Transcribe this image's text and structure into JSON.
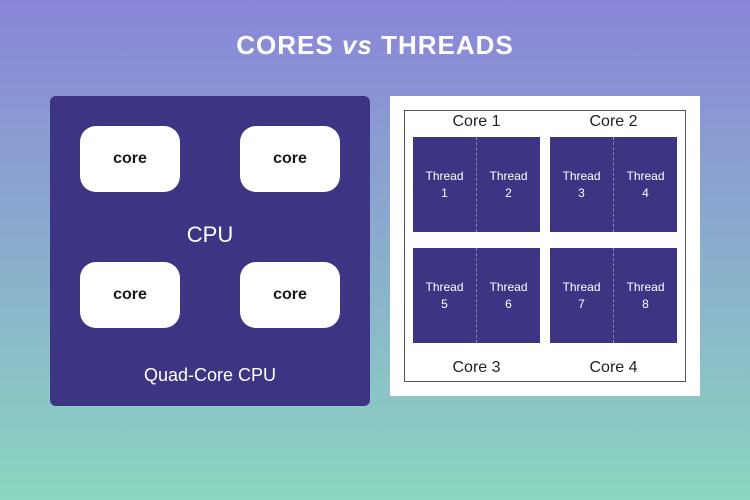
{
  "title": {
    "left": "CORES",
    "vs": "vs",
    "right": "THREADS",
    "fontsize": 26
  },
  "background": {
    "top": "#8a85d9",
    "bottom": "#8bd6c0"
  },
  "cpu_panel": {
    "bg_color": "#3d3484",
    "core_bg": "#ffffff",
    "core_text_color": "#1a1a1a",
    "core_label": "core",
    "core_fontsize": 16,
    "center_label": "CPU",
    "center_fontsize": 22,
    "caption": "Quad-Core CPU",
    "caption_fontsize": 18,
    "cores": [
      "core",
      "core",
      "core",
      "core"
    ]
  },
  "threads_panel": {
    "panel_bg": "#ffffff",
    "box_bg": "#3d3484",
    "label_fontsize": 16,
    "cores": [
      {
        "label": "Core 1",
        "threads": [
          {
            "name": "Thread",
            "num": "1"
          },
          {
            "name": "Thread",
            "num": "2"
          }
        ],
        "label_pos": "top"
      },
      {
        "label": "Core 2",
        "threads": [
          {
            "name": "Thread",
            "num": "3"
          },
          {
            "name": "Thread",
            "num": "4"
          }
        ],
        "label_pos": "top"
      },
      {
        "label": "Core 3",
        "threads": [
          {
            "name": "Thread",
            "num": "5"
          },
          {
            "name": "Thread",
            "num": "6"
          }
        ],
        "label_pos": "bottom"
      },
      {
        "label": "Core 4",
        "threads": [
          {
            "name": "Thread",
            "num": "7"
          },
          {
            "name": "Thread",
            "num": "8"
          }
        ],
        "label_pos": "bottom"
      }
    ]
  }
}
